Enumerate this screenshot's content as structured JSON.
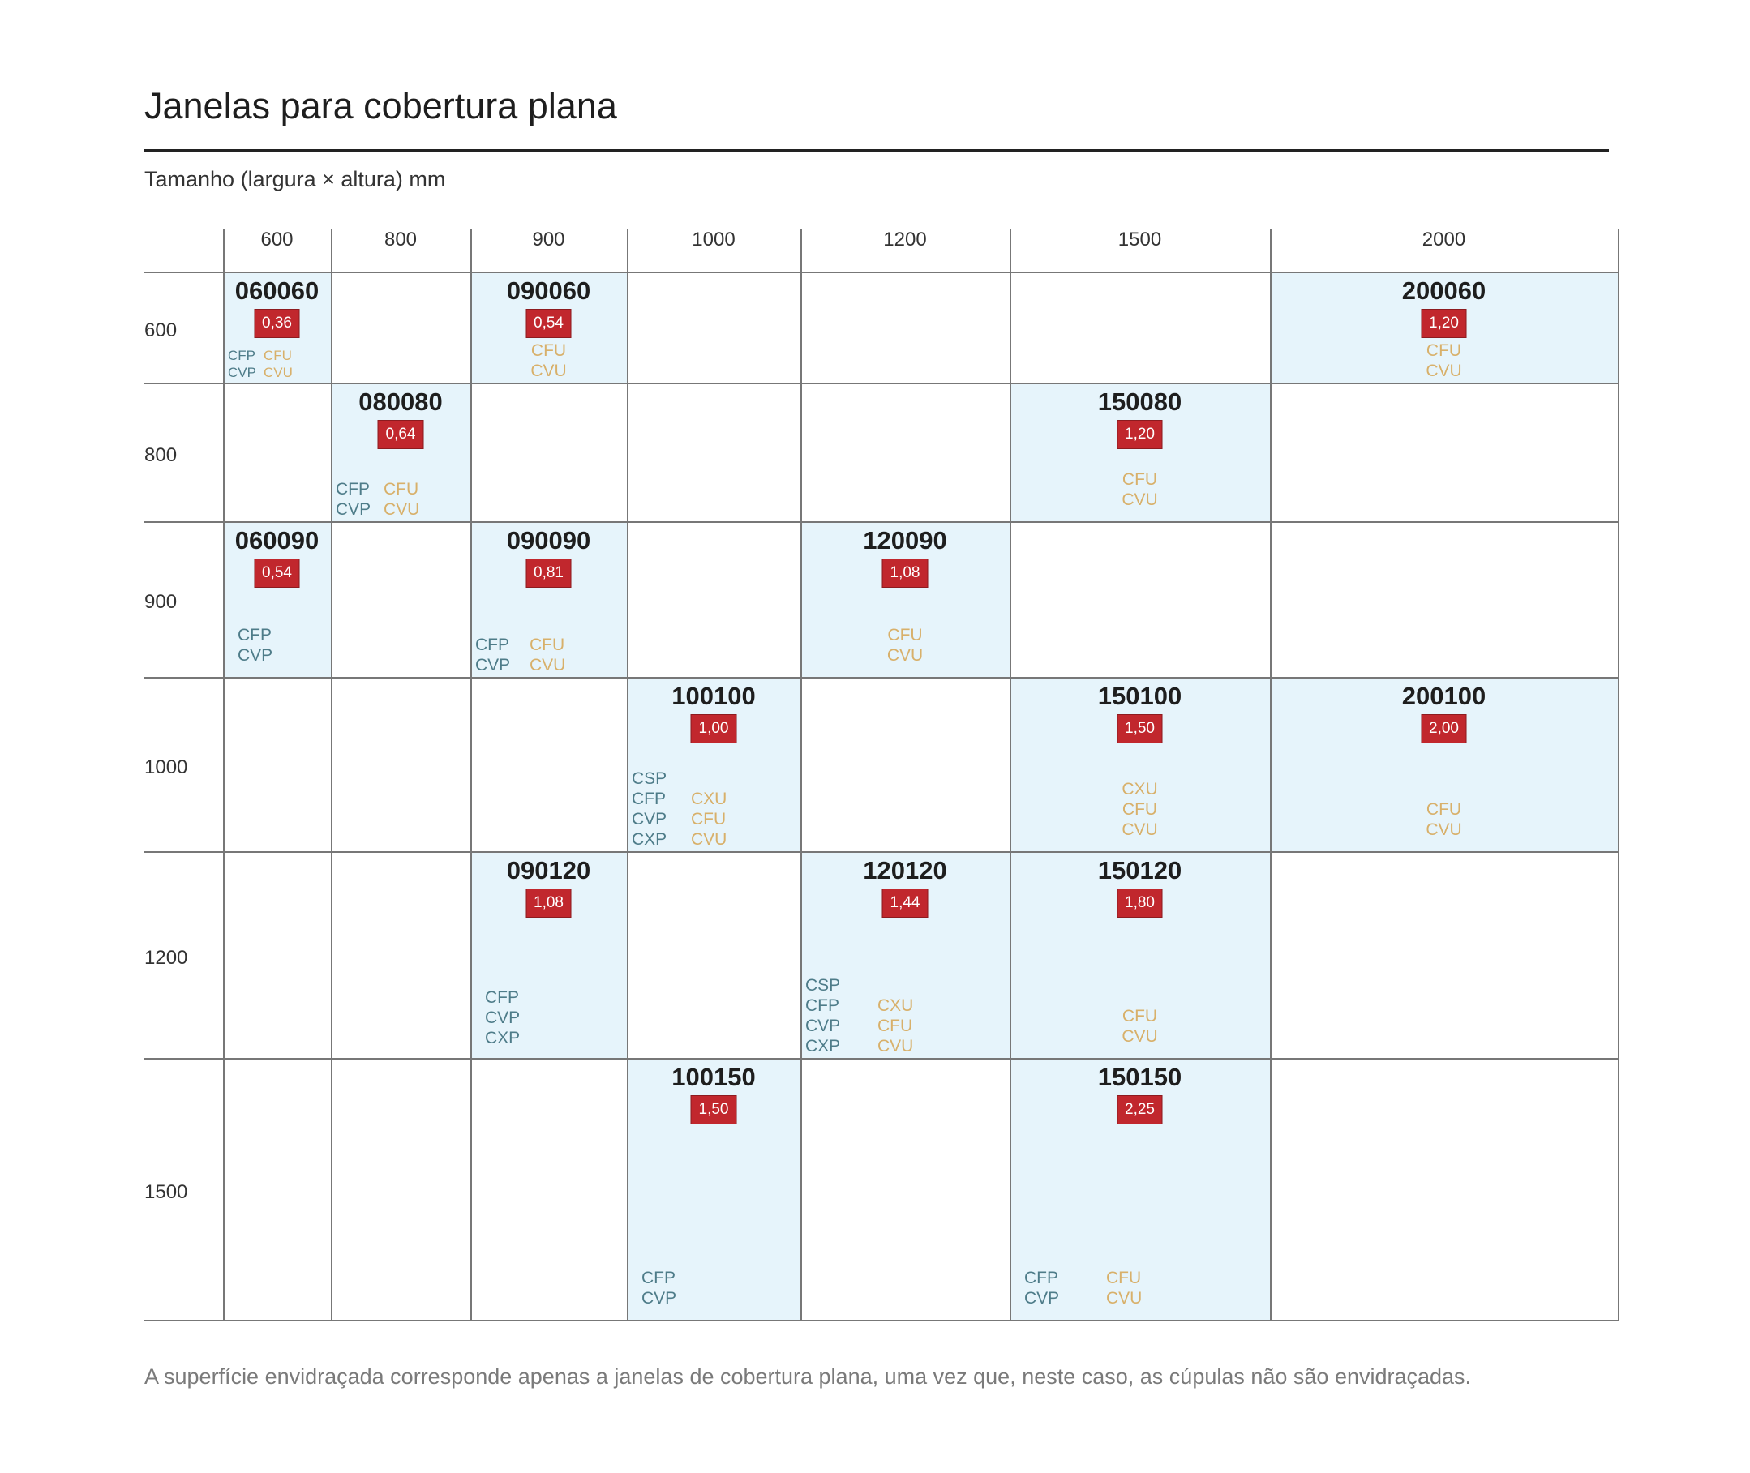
{
  "title": "Janelas para cobertura plana",
  "subtitle": "Tamanho (largura × altura) mm",
  "footnote": "A superfície envidraçada corresponde apenas a janelas de cobertura plana, uma vez que, neste caso, as cúpulas não são envidraçadas.",
  "colors": {
    "cell": "#e6f4fb",
    "area_badge": "#c1272d",
    "fixed_types": "#4e7c89",
    "opening_types": "#d8b06a"
  },
  "columns": [
    "600",
    "800",
    "900",
    "1000",
    "1200",
    "1500",
    "2000"
  ],
  "rows": [
    "600",
    "800",
    "900",
    "1000",
    "1200",
    "1500"
  ],
  "cells": [
    {
      "code": "060060",
      "area": "0,36",
      "left": [
        "CFP",
        "CVP"
      ],
      "right": [
        "CFU",
        "CVU"
      ]
    },
    {
      "code": "090060",
      "area": "0,54",
      "left": [],
      "right": [
        "CFU",
        "CVU"
      ]
    },
    {
      "code": "200060",
      "area": "1,20",
      "left": [],
      "right": [
        "CFU",
        "CVU"
      ]
    },
    {
      "code": "080080",
      "area": "0,64",
      "left": [
        "CFP",
        "CVP"
      ],
      "right": [
        "CFU",
        "CVU"
      ]
    },
    {
      "code": "150080",
      "area": "1,20",
      "left": [],
      "right": [
        "CFU",
        "CVU"
      ]
    },
    {
      "code": "060090",
      "area": "0,54",
      "left": [
        "CFP",
        "CVP"
      ],
      "right": []
    },
    {
      "code": "090090",
      "area": "0,81",
      "left": [
        "CFP",
        "CVP"
      ],
      "right": [
        "CFU",
        "CVU"
      ]
    },
    {
      "code": "120090",
      "area": "1,08",
      "left": [],
      "right": [
        "CFU",
        "CVU"
      ]
    },
    {
      "code": "100100",
      "area": "1,00",
      "left": [
        "CSP",
        "CFP",
        "CVP",
        "CXP"
      ],
      "right": [
        "CXU",
        "CFU",
        "CVU"
      ]
    },
    {
      "code": "150100",
      "area": "1,50",
      "left": [],
      "right": [
        "CXU",
        "CFU",
        "CVU"
      ]
    },
    {
      "code": "200100",
      "area": "2,00",
      "left": [],
      "right": [
        "CFU",
        "CVU"
      ]
    },
    {
      "code": "090120",
      "area": "1,08",
      "left": [
        "CFP",
        "CVP",
        "CXP"
      ],
      "right": []
    },
    {
      "code": "120120",
      "area": "1,44",
      "left": [
        "CSP",
        "CFP",
        "CVP",
        "CXP"
      ],
      "right": [
        "CXU",
        "CFU",
        "CVU"
      ]
    },
    {
      "code": "150120",
      "area": "1,80",
      "left": [],
      "right": [
        "CFU",
        "CVU"
      ]
    },
    {
      "code": "100150",
      "area": "1,50",
      "left": [
        "CFP",
        "CVP"
      ],
      "right": []
    },
    {
      "code": "150150",
      "area": "2,25",
      "left": [
        "CFP",
        "CVP"
      ],
      "right": [
        "CFU",
        "CVU"
      ]
    }
  ]
}
